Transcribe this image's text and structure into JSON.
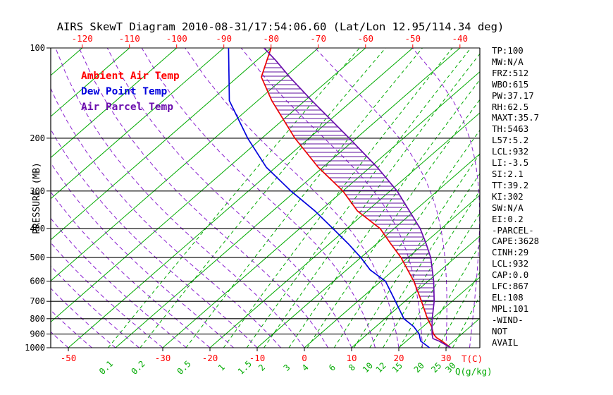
{
  "title": "AIRS SkewT Diagram 2010-08-31/17:54:06.60 (Lat/Lon 12.95/114.34 deg)",
  "legend": [
    {
      "label": "Ambient Air Temp",
      "color": "#ff0000"
    },
    {
      "label": "Dew Point Temp",
      "color": "#0000dd"
    },
    {
      "label": "Air Parcel Temp",
      "color": "#6a0dad"
    }
  ],
  "axes": {
    "pressure_label": "PRESSURE (MB)",
    "pressure_ticks": [
      100,
      200,
      300,
      400,
      500,
      600,
      700,
      800,
      900,
      1000
    ],
    "top_temp_ticks": [
      -120,
      -110,
      -100,
      -90,
      -80,
      -70,
      -60,
      -50,
      -40
    ],
    "bottom_temp_ticks": [
      -50,
      -30,
      -20,
      -10,
      0,
      10,
      20,
      30
    ],
    "bottom_temp_unit": "T(C)",
    "mixing_ratio_ticks": [
      0.1,
      0.2,
      0.5,
      1,
      1.5,
      2,
      3,
      4,
      6,
      8,
      10,
      12,
      15,
      20,
      25,
      30
    ],
    "mixing_ratio_unit": "Q(g/kg)"
  },
  "stats_lines": [
    "TP:100",
    "MW:N/A",
    "FRZ:512",
    "WBO:615",
    "PW:37.17",
    "RH:62.5",
    "MAXT:35.7",
    "TH:5463",
    "L57:5.2",
    "LCL:932",
    "LI:-3.5",
    "SI:2.1",
    "TT:39.2",
    "KI:302",
    "SW:N/A",
    "EI:0.2",
    "-PARCEL-",
    "CAPE:3628",
    "CINH:29",
    "LCL:932",
    "CAP:0.0",
    "LFC:867",
    "EL:108",
    "MPL:101",
    "-WIND-",
    "NOT",
    "AVAIL"
  ],
  "chart_data": {
    "type": "line",
    "variant": "skew-t-log-p",
    "title": "AIRS SkewT Diagram 2010-08-31/17:54:06.60 (Lat/Lon 12.95/114.34 deg)",
    "y_axis": {
      "label": "PRESSURE (MB)",
      "scale": "log",
      "range": [
        100,
        1000
      ]
    },
    "x_axis": {
      "label": "T(C)",
      "bottom_ticks": [
        -50,
        -30,
        -20,
        -10,
        0,
        10,
        20,
        30
      ],
      "top_ticks": [
        -120,
        -110,
        -100,
        -90,
        -80,
        -70,
        -60,
        -50,
        -40
      ]
    },
    "isotherm_step_c": 10,
    "mixing_ratio_lines_g_per_kg": [
      0.1,
      0.2,
      0.5,
      1,
      1.5,
      2,
      3,
      4,
      6,
      8,
      10,
      12,
      15,
      20,
      25,
      30
    ],
    "colors": {
      "isotherm": "#00aa00",
      "mixing": "#00aa00",
      "adiabat": "#8a1fd0",
      "hatch": "#5c0c9c",
      "grid": "#000000",
      "temp_label": "#ff0000"
    },
    "series": [
      {
        "name": "Ambient Air Temp",
        "color": "#ee0000",
        "points_p_t": [
          [
            100,
            -80
          ],
          [
            125,
            -75
          ],
          [
            150,
            -67
          ],
          [
            200,
            -53
          ],
          [
            250,
            -41
          ],
          [
            300,
            -30
          ],
          [
            350,
            -22
          ],
          [
            400,
            -13
          ],
          [
            450,
            -7
          ],
          [
            500,
            -1.5
          ],
          [
            600,
            7
          ],
          [
            700,
            13.5
          ],
          [
            800,
            19
          ],
          [
            850,
            21.8
          ],
          [
            900,
            24
          ],
          [
            925,
            25.5
          ],
          [
            950,
            27.5
          ],
          [
            1000,
            31
          ]
        ]
      },
      {
        "name": "Dew Point Temp",
        "color": "#0000dd",
        "points_p_t": [
          [
            100,
            -89
          ],
          [
            150,
            -76
          ],
          [
            200,
            -63
          ],
          [
            250,
            -52
          ],
          [
            300,
            -41
          ],
          [
            350,
            -31
          ],
          [
            400,
            -23
          ],
          [
            450,
            -16
          ],
          [
            500,
            -10
          ],
          [
            550,
            -5
          ],
          [
            600,
            1
          ],
          [
            700,
            8
          ],
          [
            800,
            14
          ],
          [
            850,
            18
          ],
          [
            900,
            21
          ],
          [
            925,
            22
          ],
          [
            950,
            23
          ],
          [
            1000,
            26.5
          ]
        ]
      },
      {
        "name": "Air Parcel Temp",
        "color": "#6a0dad",
        "points_p_t": [
          [
            100,
            -81.5
          ],
          [
            110,
            -76
          ],
          [
            125,
            -69
          ],
          [
            150,
            -58.5
          ],
          [
            200,
            -41.5
          ],
          [
            250,
            -28.5
          ],
          [
            300,
            -18.5
          ],
          [
            350,
            -11
          ],
          [
            400,
            -4.5
          ],
          [
            450,
            0.5
          ],
          [
            500,
            4.8
          ],
          [
            600,
            11.2
          ],
          [
            700,
            16.2
          ],
          [
            800,
            20
          ],
          [
            850,
            21.9
          ],
          [
            900,
            23.7
          ],
          [
            932,
            25
          ],
          [
            950,
            26.9
          ],
          [
            1000,
            31
          ]
        ]
      }
    ],
    "cape_hatch_between": [
      "Ambient Air Temp",
      "Air Parcel Temp"
    ]
  }
}
